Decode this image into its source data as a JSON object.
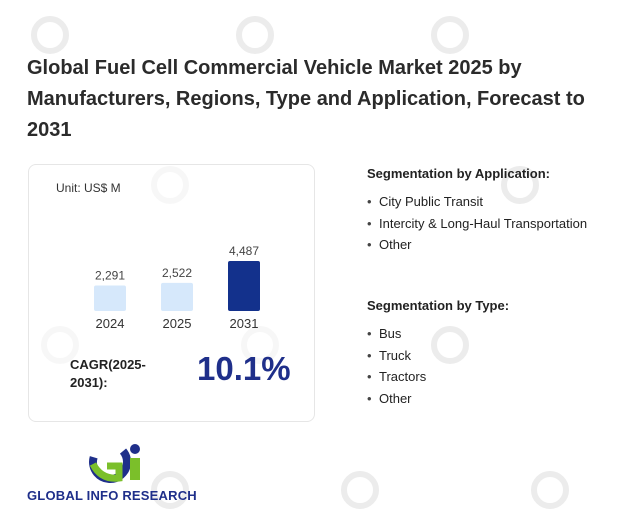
{
  "title": "Global Fuel Cell Commercial Vehicle Market 2025 by Manufacturers, Regions, Type and Application, Forecast to 2031",
  "chart_data": {
    "type": "bar",
    "unit_label": "Unit: US$ M",
    "categories": [
      "2024",
      "2025",
      "2031"
    ],
    "values": [
      2291,
      2522,
      4487
    ],
    "value_labels": [
      "2,291",
      "2,522",
      "4,487"
    ],
    "bar_colors": [
      "#d6e8fb",
      "#d6e8fb",
      "#13318c"
    ]
  },
  "cagr": {
    "label": "CAGR(2025-2031):",
    "value": "10.1%"
  },
  "segmentation_application": {
    "heading": "Segmentation by Application:",
    "items": [
      "City Public Transit",
      "Intercity & Long-Haul Transportation",
      "Other"
    ]
  },
  "segmentation_type": {
    "heading": "Segmentation by Type:",
    "items": [
      "Bus",
      "Truck",
      "Tractors",
      "Other"
    ]
  },
  "logo": {
    "text": "GLOBAL INFO RESEARCH",
    "colors": {
      "green": "#7bbf2a",
      "blue": "#1f2f8a"
    }
  }
}
